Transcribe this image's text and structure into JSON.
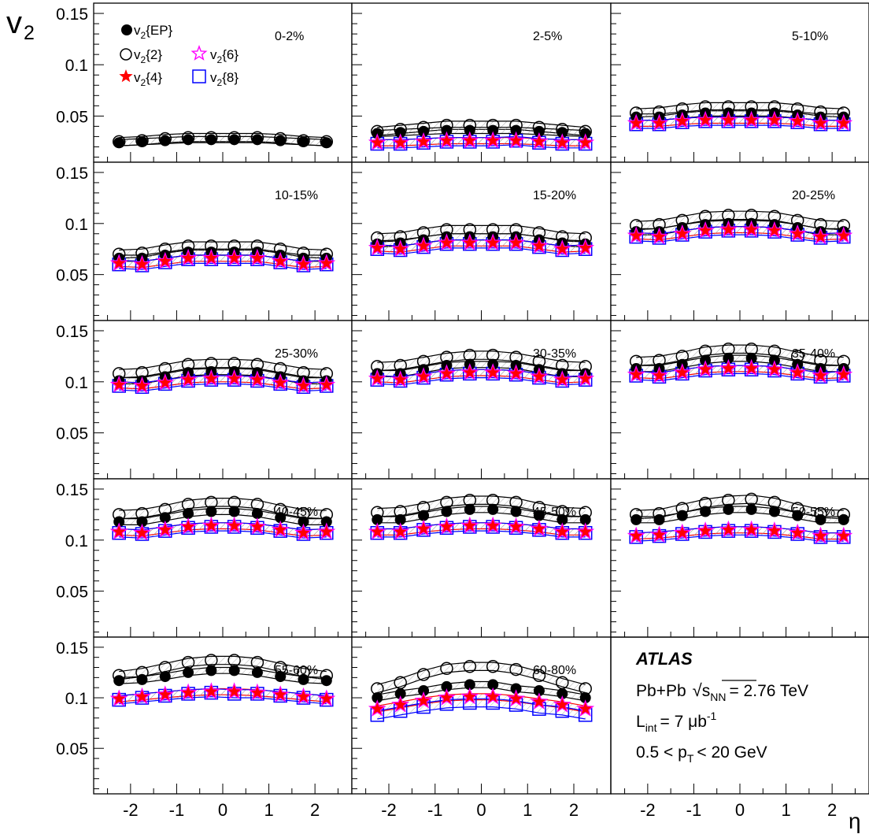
{
  "chart_data": {
    "type": "scatter",
    "title": "",
    "ylabel": "v",
    "ylabel_sub": "2",
    "xlabel": "η",
    "ylim": [
      0.005,
      0.16
    ],
    "xlim": [
      -2.8,
      2.8
    ],
    "y_ticks": [
      0.05,
      0.1,
      0.15
    ],
    "y_tick_labels": [
      "0.05",
      "0.1",
      "0.15"
    ],
    "x_ticks": [
      -2,
      -1,
      0,
      1,
      2
    ],
    "x_tick_labels": [
      "-2",
      "-1",
      "0",
      "1",
      "2"
    ],
    "eta": [
      -2.25,
      -1.75,
      -1.25,
      -0.75,
      -0.25,
      0.25,
      0.75,
      1.25,
      1.75,
      2.25
    ],
    "legend": {
      "placement": "top-left of first panel",
      "entries": [
        {
          "key": "ep",
          "label": "v",
          "sub": "2",
          "suffix": "{EP}",
          "marker": "filled-circle",
          "color": "#000000"
        },
        {
          "key": "v2",
          "label": "v",
          "sub": "2",
          "suffix": "{2}",
          "marker": "open-circle",
          "color": "#000000"
        },
        {
          "key": "v4",
          "label": "v",
          "sub": "2",
          "suffix": "{4}",
          "marker": "filled-star",
          "color": "#ff0000"
        },
        {
          "key": "v6",
          "label": "v",
          "sub": "2",
          "suffix": "{6}",
          "marker": "open-star",
          "color": "#ff00ff"
        },
        {
          "key": "v8",
          "label": "v",
          "sub": "2",
          "suffix": "{8}",
          "marker": "open-square",
          "color": "#0000ff"
        }
      ]
    },
    "panels": [
      {
        "label": "0-2%",
        "series": {
          "ep": [
            0.024,
            0.025,
            0.026,
            0.027,
            0.027,
            0.027,
            0.027,
            0.026,
            0.025,
            0.024
          ],
          "v2": [
            0.025,
            0.026,
            0.028,
            0.029,
            0.029,
            0.029,
            0.029,
            0.028,
            0.026,
            0.025
          ]
        }
      },
      {
        "label": "2-5%",
        "series": {
          "ep": [
            0.033,
            0.034,
            0.035,
            0.036,
            0.036,
            0.036,
            0.036,
            0.035,
            0.034,
            0.033
          ],
          "v2": [
            0.035,
            0.037,
            0.039,
            0.041,
            0.041,
            0.041,
            0.041,
            0.039,
            0.037,
            0.035
          ],
          "v4": [
            0.024,
            0.024,
            0.025,
            0.026,
            0.026,
            0.026,
            0.026,
            0.025,
            0.024,
            0.024
          ],
          "v6": [
            0.024,
            0.024,
            0.025,
            0.026,
            0.026,
            0.026,
            0.026,
            0.025,
            0.024,
            0.024
          ],
          "v8": [
            0.023,
            0.023,
            0.024,
            0.025,
            0.025,
            0.025,
            0.026,
            0.024,
            0.023,
            0.023
          ]
        }
      },
      {
        "label": "5-10%",
        "series": {
          "ep": [
            0.049,
            0.049,
            0.051,
            0.053,
            0.053,
            0.053,
            0.053,
            0.051,
            0.049,
            0.049
          ],
          "v2": [
            0.053,
            0.054,
            0.057,
            0.059,
            0.059,
            0.059,
            0.059,
            0.057,
            0.054,
            0.053
          ],
          "v4": [
            0.043,
            0.043,
            0.045,
            0.046,
            0.046,
            0.046,
            0.046,
            0.045,
            0.043,
            0.043
          ],
          "v6": [
            0.043,
            0.043,
            0.045,
            0.046,
            0.046,
            0.046,
            0.046,
            0.045,
            0.043,
            0.043
          ],
          "v8": [
            0.042,
            0.042,
            0.044,
            0.045,
            0.045,
            0.045,
            0.045,
            0.044,
            0.042,
            0.042
          ]
        }
      },
      {
        "label": "10-15%",
        "series": {
          "ep": [
            0.066,
            0.066,
            0.069,
            0.072,
            0.072,
            0.072,
            0.072,
            0.069,
            0.066,
            0.066
          ],
          "v2": [
            0.07,
            0.071,
            0.075,
            0.078,
            0.078,
            0.078,
            0.078,
            0.075,
            0.071,
            0.07
          ],
          "v4": [
            0.061,
            0.06,
            0.063,
            0.066,
            0.066,
            0.066,
            0.066,
            0.063,
            0.06,
            0.061
          ],
          "v6": [
            0.061,
            0.06,
            0.063,
            0.066,
            0.066,
            0.066,
            0.066,
            0.063,
            0.06,
            0.061
          ],
          "v8": [
            0.06,
            0.059,
            0.062,
            0.065,
            0.065,
            0.065,
            0.065,
            0.062,
            0.059,
            0.06
          ]
        }
      },
      {
        "label": "15-20%",
        "series": {
          "ep": [
            0.08,
            0.081,
            0.084,
            0.087,
            0.087,
            0.087,
            0.087,
            0.084,
            0.081,
            0.08
          ],
          "v2": [
            0.086,
            0.087,
            0.091,
            0.094,
            0.094,
            0.094,
            0.094,
            0.091,
            0.087,
            0.086
          ],
          "v4": [
            0.076,
            0.075,
            0.078,
            0.081,
            0.081,
            0.081,
            0.081,
            0.078,
            0.075,
            0.076
          ],
          "v6": [
            0.076,
            0.075,
            0.078,
            0.081,
            0.081,
            0.081,
            0.081,
            0.078,
            0.075,
            0.076
          ],
          "v8": [
            0.075,
            0.074,
            0.077,
            0.08,
            0.08,
            0.08,
            0.08,
            0.077,
            0.074,
            0.075
          ]
        }
      },
      {
        "label": "20-25%",
        "series": {
          "ep": [
            0.092,
            0.092,
            0.096,
            0.099,
            0.1,
            0.1,
            0.099,
            0.096,
            0.092,
            0.092
          ],
          "v2": [
            0.098,
            0.099,
            0.103,
            0.107,
            0.108,
            0.108,
            0.107,
            0.103,
            0.099,
            0.098
          ],
          "v4": [
            0.088,
            0.087,
            0.09,
            0.093,
            0.094,
            0.094,
            0.093,
            0.09,
            0.087,
            0.088
          ],
          "v6": [
            0.088,
            0.087,
            0.09,
            0.093,
            0.094,
            0.094,
            0.093,
            0.09,
            0.087,
            0.088
          ],
          "v8": [
            0.087,
            0.086,
            0.089,
            0.092,
            0.093,
            0.093,
            0.092,
            0.089,
            0.086,
            0.087
          ]
        }
      },
      {
        "label": "25-30%",
        "series": {
          "ep": [
            0.101,
            0.101,
            0.105,
            0.109,
            0.11,
            0.11,
            0.109,
            0.105,
            0.101,
            0.101
          ],
          "v2": [
            0.108,
            0.109,
            0.113,
            0.117,
            0.118,
            0.118,
            0.117,
            0.113,
            0.109,
            0.108
          ],
          "v4": [
            0.097,
            0.096,
            0.099,
            0.102,
            0.103,
            0.103,
            0.102,
            0.099,
            0.096,
            0.097
          ],
          "v6": [
            0.097,
            0.096,
            0.099,
            0.102,
            0.103,
            0.103,
            0.102,
            0.099,
            0.096,
            0.097
          ],
          "v8": [
            0.096,
            0.095,
            0.098,
            0.101,
            0.102,
            0.102,
            0.101,
            0.098,
            0.095,
            0.096
          ]
        }
      },
      {
        "label": "30-35%",
        "series": {
          "ep": [
            0.108,
            0.108,
            0.112,
            0.116,
            0.117,
            0.117,
            0.116,
            0.112,
            0.108,
            0.108
          ],
          "v2": [
            0.115,
            0.116,
            0.12,
            0.124,
            0.126,
            0.126,
            0.124,
            0.12,
            0.116,
            0.115
          ],
          "v4": [
            0.103,
            0.102,
            0.105,
            0.108,
            0.109,
            0.109,
            0.108,
            0.105,
            0.102,
            0.103
          ],
          "v6": [
            0.103,
            0.102,
            0.105,
            0.108,
            0.109,
            0.109,
            0.108,
            0.105,
            0.102,
            0.103
          ],
          "v8": [
            0.102,
            0.101,
            0.104,
            0.107,
            0.108,
            0.108,
            0.107,
            0.104,
            0.101,
            0.102
          ]
        }
      },
      {
        "label": "35-40%",
        "series": {
          "ep": [
            0.113,
            0.113,
            0.117,
            0.121,
            0.123,
            0.123,
            0.121,
            0.117,
            0.113,
            0.113
          ],
          "v2": [
            0.12,
            0.121,
            0.125,
            0.13,
            0.132,
            0.132,
            0.13,
            0.125,
            0.121,
            0.12
          ],
          "v4": [
            0.107,
            0.106,
            0.109,
            0.112,
            0.113,
            0.113,
            0.112,
            0.109,
            0.106,
            0.107
          ],
          "v6": [
            0.107,
            0.106,
            0.109,
            0.112,
            0.113,
            0.113,
            0.112,
            0.109,
            0.106,
            0.107
          ],
          "v8": [
            0.106,
            0.105,
            0.108,
            0.111,
            0.112,
            0.112,
            0.111,
            0.108,
            0.105,
            0.106
          ]
        }
      },
      {
        "label": "40-45%",
        "series": {
          "ep": [
            0.118,
            0.118,
            0.122,
            0.126,
            0.128,
            0.128,
            0.126,
            0.122,
            0.118,
            0.118
          ],
          "v2": [
            0.125,
            0.126,
            0.13,
            0.135,
            0.137,
            0.137,
            0.135,
            0.13,
            0.126,
            0.125
          ],
          "v4": [
            0.108,
            0.107,
            0.11,
            0.113,
            0.114,
            0.114,
            0.113,
            0.11,
            0.107,
            0.108
          ],
          "v6": [
            0.108,
            0.107,
            0.11,
            0.113,
            0.114,
            0.114,
            0.113,
            0.11,
            0.107,
            0.108
          ],
          "v8": [
            0.107,
            0.106,
            0.109,
            0.112,
            0.113,
            0.113,
            0.112,
            0.109,
            0.106,
            0.107
          ]
        }
      },
      {
        "label": "45-50%",
        "series": {
          "ep": [
            0.12,
            0.12,
            0.124,
            0.128,
            0.13,
            0.13,
            0.128,
            0.124,
            0.12,
            0.12
          ],
          "v2": [
            0.127,
            0.128,
            0.132,
            0.137,
            0.139,
            0.139,
            0.137,
            0.132,
            0.128,
            0.127
          ],
          "v4": [
            0.108,
            0.108,
            0.111,
            0.113,
            0.114,
            0.114,
            0.113,
            0.111,
            0.108,
            0.108
          ],
          "v6": [
            0.108,
            0.108,
            0.111,
            0.113,
            0.114,
            0.114,
            0.113,
            0.111,
            0.108,
            0.108
          ],
          "v8": [
            0.107,
            0.107,
            0.11,
            0.112,
            0.113,
            0.113,
            0.112,
            0.11,
            0.107,
            0.107
          ]
        }
      },
      {
        "label": "50-55%",
        "series": {
          "ep": [
            0.12,
            0.12,
            0.124,
            0.128,
            0.13,
            0.13,
            0.128,
            0.124,
            0.12,
            0.12
          ],
          "v2": [
            0.125,
            0.126,
            0.131,
            0.136,
            0.139,
            0.14,
            0.137,
            0.131,
            0.126,
            0.125
          ],
          "v4": [
            0.104,
            0.105,
            0.107,
            0.109,
            0.11,
            0.11,
            0.109,
            0.107,
            0.104,
            0.104
          ],
          "v6": [
            0.104,
            0.105,
            0.107,
            0.109,
            0.11,
            0.11,
            0.109,
            0.107,
            0.104,
            0.104
          ],
          "v8": [
            0.103,
            0.104,
            0.106,
            0.108,
            0.109,
            0.109,
            0.108,
            0.106,
            0.103,
            0.103
          ]
        }
      },
      {
        "label": "55-60%",
        "series": {
          "ep": [
            0.117,
            0.118,
            0.121,
            0.125,
            0.127,
            0.127,
            0.125,
            0.121,
            0.118,
            0.117
          ],
          "v2": [
            0.122,
            0.125,
            0.13,
            0.135,
            0.137,
            0.137,
            0.135,
            0.13,
            0.125,
            0.122
          ],
          "v4": [
            0.099,
            0.101,
            0.103,
            0.105,
            0.106,
            0.106,
            0.105,
            0.103,
            0.101,
            0.099
          ],
          "v6": [
            0.099,
            0.101,
            0.103,
            0.105,
            0.106,
            0.106,
            0.105,
            0.103,
            0.101,
            0.099
          ],
          "v8": [
            0.098,
            0.1,
            0.102,
            0.104,
            0.105,
            0.104,
            0.104,
            0.102,
            0.1,
            0.098
          ]
        }
      },
      {
        "label": "60-80%",
        "series": {
          "ep": [
            0.1,
            0.104,
            0.107,
            0.111,
            0.113,
            0.113,
            0.109,
            0.107,
            0.104,
            0.1
          ],
          "v2": [
            0.109,
            0.115,
            0.123,
            0.129,
            0.131,
            0.131,
            0.128,
            0.122,
            0.115,
            0.109
          ],
          "v4": [
            0.089,
            0.093,
            0.097,
            0.1,
            0.101,
            0.101,
            0.099,
            0.096,
            0.093,
            0.089
          ],
          "v6": [
            0.089,
            0.093,
            0.097,
            0.1,
            0.101,
            0.101,
            0.099,
            0.096,
            0.093,
            0.089
          ],
          "v8": [
            0.083,
            0.087,
            0.091,
            0.094,
            0.095,
            0.095,
            0.093,
            0.089,
            0.087,
            0.083
          ]
        }
      }
    ],
    "annotation": {
      "experiment": "ATLAS",
      "system": "Pb+Pb",
      "sqrt_s": "s",
      "sqrt_s_sub": "NN",
      "energy": "= 2.76 TeV",
      "lumi_L": "L",
      "lumi_sub": "int",
      "lumi_value": "= 7 μb",
      "lumi_sup": "-1",
      "pt_range_pre": "0.5 < p",
      "pt_sub": "T",
      "pt_range_post": "< 20 GeV"
    }
  }
}
